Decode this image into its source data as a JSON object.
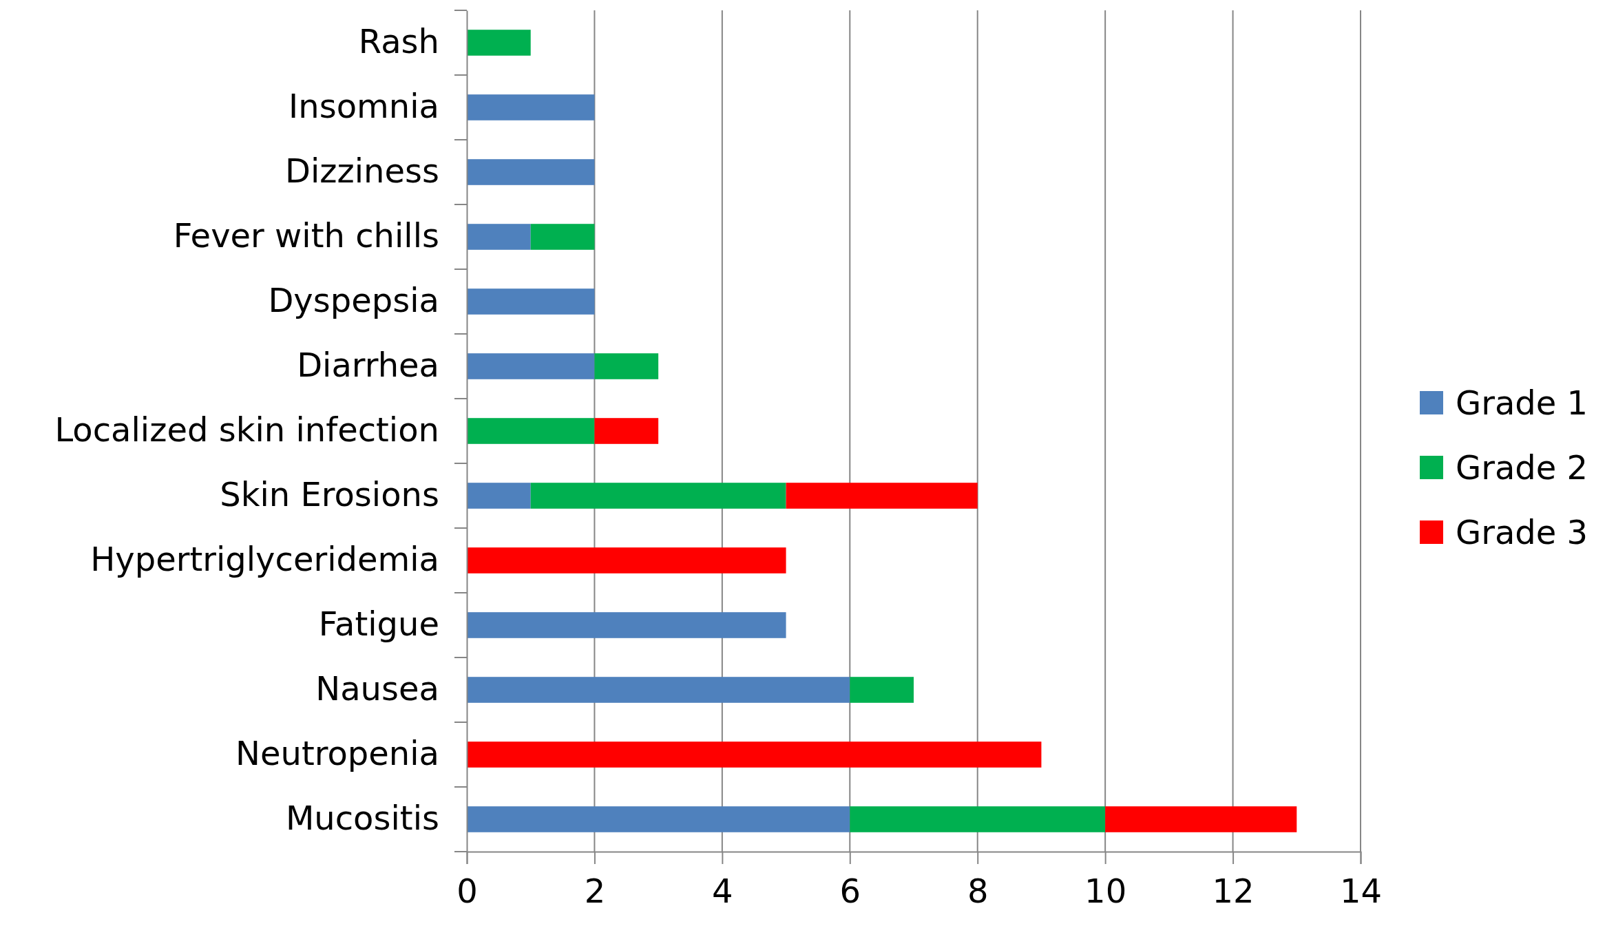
{
  "chart_data": {
    "type": "bar",
    "orientation": "horizontal",
    "stacked": true,
    "categories": [
      "Rash",
      "Insomnia",
      "Dizziness",
      "Fever with chills",
      "Dyspepsia",
      "Diarrhea",
      "Localized skin infection",
      "Skin Erosions",
      "Hypertriglyceridemia",
      "Fatigue",
      "Nausea",
      "Neutropenia",
      "Mucositis"
    ],
    "series": [
      {
        "name": "Grade 1",
        "color": "#4f81bd",
        "values": [
          0,
          2,
          2,
          1,
          2,
          2,
          0,
          1,
          0,
          5,
          6,
          0,
          6
        ]
      },
      {
        "name": "Grade 2",
        "color": "#00b050",
        "values": [
          1,
          0,
          0,
          1,
          0,
          1,
          2,
          4,
          0,
          0,
          1,
          0,
          4
        ]
      },
      {
        "name": "Grade 3",
        "color": "#ff0000",
        "values": [
          0,
          0,
          0,
          0,
          0,
          0,
          1,
          3,
          5,
          0,
          0,
          9,
          3
        ]
      }
    ],
    "xlim": [
      0,
      14
    ],
    "xticks": [
      0,
      2,
      4,
      6,
      8,
      10,
      12,
      14
    ],
    "grid": "x",
    "legend": "right"
  }
}
